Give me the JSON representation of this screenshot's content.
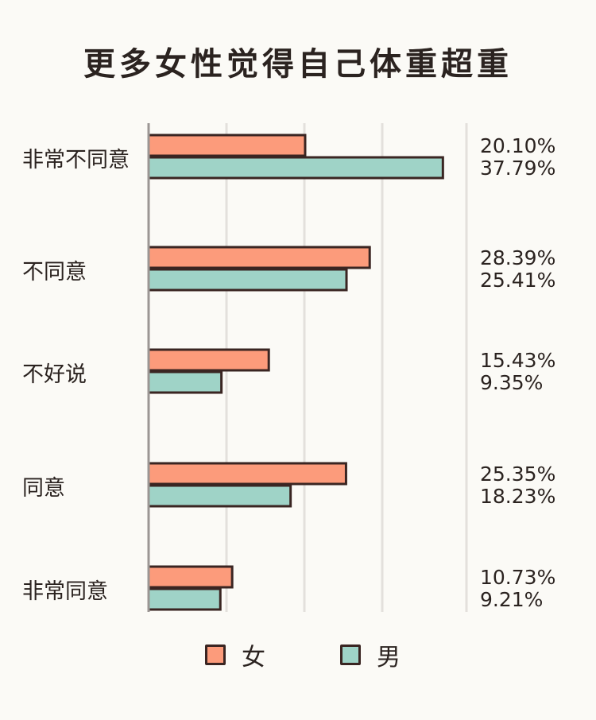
{
  "chart_data": {
    "type": "bar",
    "orientation": "horizontal",
    "title": "更多女性觉得自己体重超重",
    "categories": [
      "非常不同意",
      "不同意",
      "不好说",
      "同意",
      "非常同意"
    ],
    "series": [
      {
        "name": "女",
        "color": "#fc9b7b",
        "values": [
          20.1,
          28.39,
          15.43,
          25.35,
          10.73
        ],
        "labels": [
          "20.10%",
          "28.39%",
          "15.43%",
          "25.35%",
          "10.73%"
        ]
      },
      {
        "name": "男",
        "color": "#9fd3c7",
        "values": [
          37.79,
          25.41,
          9.35,
          18.23,
          9.21
        ],
        "labels": [
          "37.79%",
          "25.41%",
          "9.35%",
          "18.23%",
          "9.21%"
        ]
      }
    ],
    "xlim": [
      0,
      40
    ],
    "grid": true,
    "legend_position": "bottom",
    "outline_color": "#3a2522",
    "grid_color": "#e3e0dc"
  }
}
